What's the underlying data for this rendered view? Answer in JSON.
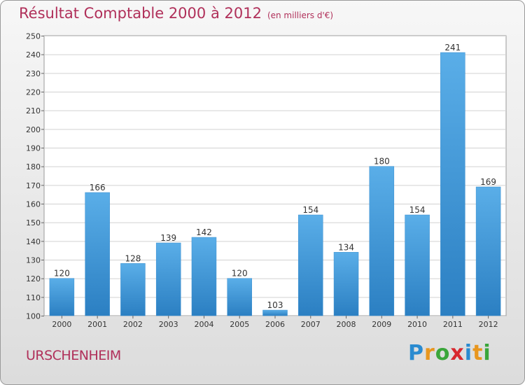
{
  "title": "Résultat Comptable 2000 à 2012",
  "subtitle": "(en milliers d'€)",
  "place": "URSCHENHEIM",
  "logo": "Proxiti",
  "colors": {
    "bar": "#3f9ad9",
    "title": "#b0305a"
  },
  "chart_data": {
    "type": "bar",
    "categories": [
      "2000",
      "2001",
      "2002",
      "2003",
      "2004",
      "2005",
      "2006",
      "2007",
      "2008",
      "2009",
      "2010",
      "2011",
      "2012"
    ],
    "values": [
      120,
      166,
      128,
      139,
      142,
      120,
      103,
      154,
      134,
      180,
      154,
      241,
      169
    ],
    "ylim": [
      100,
      250
    ],
    "yticks": [
      100,
      110,
      120,
      130,
      140,
      150,
      160,
      170,
      180,
      190,
      200,
      210,
      220,
      230,
      240,
      250
    ],
    "grid": true,
    "data_labels": true
  }
}
